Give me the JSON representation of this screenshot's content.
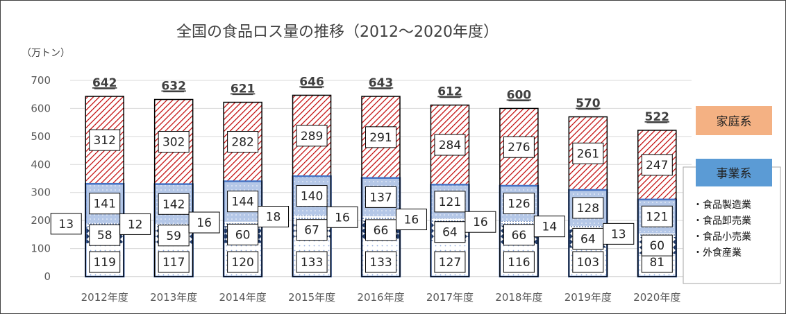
{
  "chart_data": {
    "type": "bar",
    "title": "全国の食品ロス量の推移（2012～2020年度）",
    "unit_label": "（万トン）",
    "ylim": [
      0,
      700
    ],
    "yticks": [
      0,
      100,
      200,
      300,
      400,
      500,
      600,
      700
    ],
    "categories": [
      "2012年度",
      "2013年度",
      "2014年度",
      "2015年度",
      "2016年度",
      "2017年度",
      "2018年度",
      "2019年度",
      "2020年度"
    ],
    "series": [
      {
        "name": "外食産業",
        "values": [
          119,
          117,
          120,
          133,
          133,
          127,
          116,
          103,
          81
        ]
      },
      {
        "name": "食品小売業",
        "values": [
          58,
          59,
          60,
          67,
          66,
          64,
          66,
          64,
          60
        ]
      },
      {
        "name": "食品卸売業",
        "values": [
          13,
          12,
          16,
          18,
          16,
          16,
          16,
          14,
          13
        ]
      },
      {
        "name": "食品製造業",
        "values": [
          141,
          142,
          144,
          140,
          137,
          121,
          126,
          128,
          121
        ]
      },
      {
        "name": "家庭系",
        "values": [
          312,
          302,
          282,
          289,
          291,
          284,
          276,
          261,
          247
        ]
      }
    ],
    "totals": [
      642,
      632,
      621,
      646,
      643,
      612,
      600,
      570,
      522
    ],
    "legend": {
      "household": "家庭系",
      "business": "事業系",
      "business_items": [
        "・食品製造業",
        "・食品卸売業",
        "・食品小売業",
        "・外食産業"
      ]
    },
    "grid": true
  },
  "colors": {
    "household_fill": "#f4b183",
    "household_hatch": "#c00000",
    "business_fill": "#5b9bd5",
    "manufacturing_fill": "#b4c7e7",
    "retail_pattern": "#1f3864",
    "dining_dots": "#8faadc"
  }
}
